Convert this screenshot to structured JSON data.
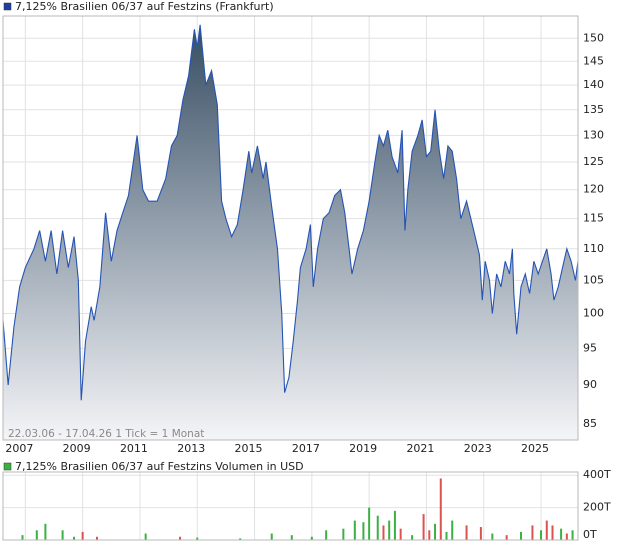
{
  "chart_data": [
    {
      "type": "area",
      "title": "7,125% Brasilien 06/37 auf Festzins (Frankfurt)",
      "annotation": "22.03.06 - 17.04.26   1 Tick = 1 Monat",
      "color": "#2554b4",
      "legend_color": "#1f3f9f",
      "log_scale": true,
      "grid": true,
      "xlim": [
        2006.22,
        2026.29
      ],
      "xticks": [
        2007,
        2009,
        2011,
        2013,
        2015,
        2017,
        2019,
        2021,
        2023,
        2025
      ],
      "ylim": [
        83,
        155
      ],
      "yticks": [
        85,
        90,
        95,
        100,
        105,
        110,
        115,
        120,
        125,
        130,
        135,
        140,
        145,
        150
      ],
      "x": [
        2006.22,
        2006.4,
        2006.6,
        2006.8,
        2007.0,
        2007.3,
        2007.5,
        2007.7,
        2007.9,
        2008.1,
        2008.3,
        2008.5,
        2008.7,
        2008.85,
        2008.95,
        2009.1,
        2009.3,
        2009.4,
        2009.6,
        2009.8,
        2010.0,
        2010.2,
        2010.4,
        2010.6,
        2010.9,
        2011.1,
        2011.3,
        2011.6,
        2011.9,
        2012.1,
        2012.3,
        2012.5,
        2012.7,
        2012.9,
        2013.0,
        2013.1,
        2013.3,
        2013.5,
        2013.7,
        2013.85,
        2014.0,
        2014.2,
        2014.4,
        2014.6,
        2014.8,
        2014.9,
        2015.1,
        2015.3,
        2015.4,
        2015.6,
        2015.8,
        2015.95,
        2016.05,
        2016.2,
        2016.35,
        2016.5,
        2016.6,
        2016.8,
        2016.95,
        2017.05,
        2017.2,
        2017.4,
        2017.6,
        2017.8,
        2018.0,
        2018.15,
        2018.3,
        2018.4,
        2018.6,
        2018.8,
        2019.0,
        2019.2,
        2019.35,
        2019.5,
        2019.65,
        2019.8,
        2020.0,
        2020.15,
        2020.25,
        2020.35,
        2020.5,
        2020.7,
        2020.85,
        2021.0,
        2021.15,
        2021.3,
        2021.45,
        2021.6,
        2021.75,
        2021.9,
        2022.05,
        2022.2,
        2022.4,
        2022.55,
        2022.7,
        2022.85,
        2022.95,
        2023.05,
        2023.2,
        2023.3,
        2023.45,
        2023.6,
        2023.75,
        2023.9,
        2024.0,
        2024.05,
        2024.15,
        2024.3,
        2024.45,
        2024.6,
        2024.75,
        2024.9,
        2025.05,
        2025.2,
        2025.35,
        2025.45,
        2025.6,
        2025.75,
        2025.9,
        2026.05,
        2026.2,
        2026.29
      ],
      "values": [
        99,
        90,
        98,
        104,
        107,
        110,
        113,
        108,
        113,
        106,
        113,
        107,
        112,
        105,
        88,
        96,
        101,
        99,
        104,
        116,
        108,
        113,
        116,
        119,
        130,
        120,
        118,
        118,
        122,
        128,
        130,
        137,
        142,
        152,
        148,
        153,
        140,
        143,
        136,
        118,
        115,
        112,
        114,
        120,
        127,
        123,
        128,
        122,
        125,
        117,
        110,
        100,
        89,
        91,
        96,
        102,
        107,
        110,
        114,
        104,
        110,
        115,
        116,
        119,
        120,
        116,
        110,
        106,
        110,
        113,
        118,
        125,
        130,
        128,
        131,
        126,
        123,
        131,
        113,
        120,
        127,
        130,
        133,
        126,
        127,
        135,
        127,
        122,
        128,
        127,
        122,
        115,
        118,
        115,
        112,
        109,
        102,
        108,
        105,
        100,
        106,
        104,
        108,
        106,
        110,
        103,
        97,
        104,
        106,
        103,
        108,
        106,
        108,
        110,
        106,
        102,
        104,
        107,
        110,
        108,
        105,
        108
      ]
    },
    {
      "type": "bar",
      "title": "7,125% Brasilien 06/37 auf Festzins Volumen in USD",
      "legend_color": "#3cb043",
      "grid": true,
      "xlim": [
        2006.22,
        2026.29
      ],
      "xticks": [
        2007,
        2009,
        2011,
        2013,
        2015,
        2017,
        2019,
        2021,
        2023,
        2025
      ],
      "ylim": [
        0,
        420
      ],
      "yticks": [
        {
          "value": 0,
          "label": "0T"
        },
        {
          "value": 200,
          "label": "200T"
        },
        {
          "value": 400,
          "label": "400T"
        }
      ],
      "x": [
        2006.9,
        2007.4,
        2007.7,
        2008.3,
        2008.7,
        2009.0,
        2009.5,
        2011.2,
        2012.4,
        2013.0,
        2014.5,
        2015.6,
        2016.3,
        2017.0,
        2017.5,
        2018.1,
        2018.5,
        2018.8,
        2019.0,
        2019.3,
        2019.5,
        2019.7,
        2019.9,
        2020.1,
        2020.5,
        2020.9,
        2021.1,
        2021.3,
        2021.5,
        2021.7,
        2021.9,
        2022.4,
        2022.9,
        2023.3,
        2023.8,
        2024.3,
        2024.7,
        2025.0,
        2025.2,
        2025.4,
        2025.7,
        2025.9,
        2026.1
      ],
      "values": [
        30,
        60,
        100,
        60,
        20,
        50,
        20,
        40,
        20,
        15,
        10,
        40,
        30,
        20,
        60,
        70,
        120,
        110,
        200,
        150,
        90,
        120,
        180,
        70,
        30,
        160,
        60,
        100,
        380,
        50,
        120,
        90,
        80,
        40,
        30,
        50,
        90,
        60,
        120,
        90,
        70,
        40,
        60
      ],
      "colors": [
        "#3cb043",
        "#3cb043",
        "#3cb043",
        "#3cb043",
        "#3cb043",
        "#d9534f",
        "#d9534f",
        "#3cb043",
        "#d9534f",
        "#3cb043",
        "#3cb043",
        "#3cb043",
        "#3cb043",
        "#3cb043",
        "#3cb043",
        "#3cb043",
        "#3cb043",
        "#3cb043",
        "#3cb043",
        "#3cb043",
        "#d9534f",
        "#3cb043",
        "#3cb043",
        "#d9534f",
        "#3cb043",
        "#d9534f",
        "#d9534f",
        "#3cb043",
        "#d9534f",
        "#3cb043",
        "#3cb043",
        "#d9534f",
        "#d9534f",
        "#3cb043",
        "#d9534f",
        "#3cb043",
        "#d9534f",
        "#3cb043",
        "#d9534f",
        "#d9534f",
        "#3cb043",
        "#d9534f",
        "#3cb043"
      ]
    }
  ]
}
